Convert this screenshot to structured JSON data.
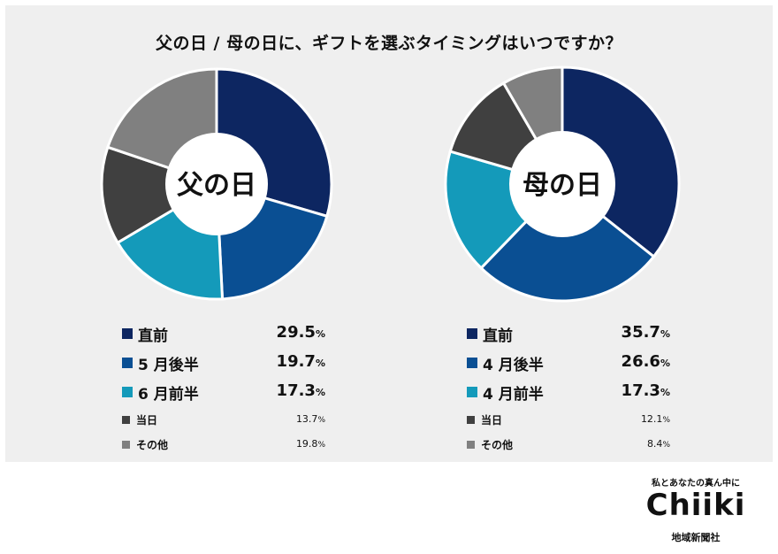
{
  "title": "父の日 / 母の日に、ギフトを選ぶタイミングはいつですか？",
  "colors": {
    "background_panel": "#efefef",
    "navy": "#0d2661",
    "blue": "#0a4f93",
    "teal": "#149aba",
    "dark_gray": "#404040",
    "gray": "#808080"
  },
  "chart_data": [
    {
      "type": "pie",
      "center_label": "父の日",
      "categories": [
        "直前",
        "5 月後半",
        "6 月前半",
        "当日",
        "その他"
      ],
      "values": [
        29.5,
        19.7,
        17.3,
        13.7,
        19.8
      ],
      "colors": [
        "#0d2661",
        "#0a4f93",
        "#149aba",
        "#404040",
        "#808080"
      ],
      "legend": [
        {
          "label": "直前",
          "int": "29.5",
          "pct": "%",
          "size": "big"
        },
        {
          "label": "5 月後半",
          "int": "19.7",
          "pct": "%",
          "size": "big"
        },
        {
          "label": "6 月前半",
          "int": "17.3",
          "pct": "%",
          "size": "big"
        },
        {
          "label": "当日",
          "int": "13.7",
          "pct": "%",
          "size": "small"
        },
        {
          "label": "その他",
          "int": "19.8",
          "pct": "%",
          "size": "small"
        }
      ]
    },
    {
      "type": "pie",
      "center_label": "母の日",
      "categories": [
        "直前",
        "4 月後半",
        "4 月前半",
        "当日",
        "その他"
      ],
      "values": [
        35.7,
        26.6,
        17.3,
        12.1,
        8.4
      ],
      "colors": [
        "#0d2661",
        "#0a4f93",
        "#149aba",
        "#404040",
        "#808080"
      ],
      "legend": [
        {
          "label": "直前",
          "int": "35.7",
          "pct": "%",
          "size": "big"
        },
        {
          "label": "4 月後半",
          "int": "26.6",
          "pct": "%",
          "size": "big"
        },
        {
          "label": "4 月前半",
          "int": "17.3",
          "pct": "%",
          "size": "big"
        },
        {
          "label": "当日",
          "int": "12.1",
          "pct": "%",
          "size": "small"
        },
        {
          "label": "その他",
          "int": "8.4",
          "pct": "%",
          "size": "small"
        }
      ]
    }
  ],
  "logo": {
    "tagline": "私とあなたの真ん中に",
    "name": "Chiiki",
    "org": "地域新聞社"
  }
}
